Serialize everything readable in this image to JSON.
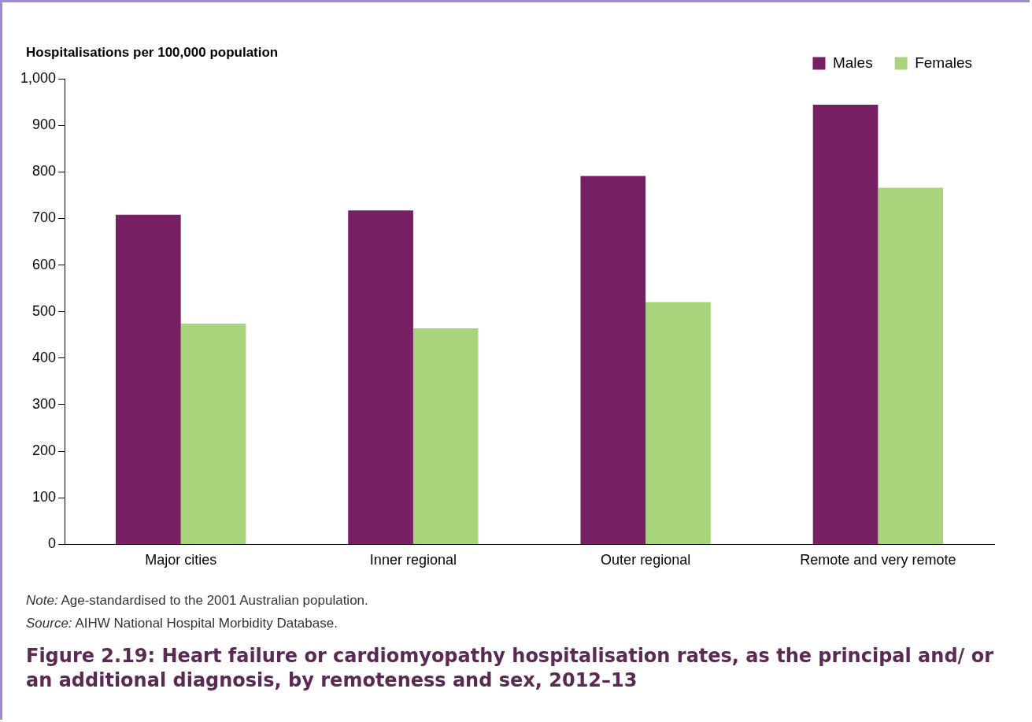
{
  "chart_data": {
    "type": "bar",
    "title": "Figure 2.19: Heart failure or cardiomyopathy hospitalisation rates, as the principal and/ or an additional diagnosis, by remoteness and sex, 2012–13",
    "ylabel": "Hospitalisations per 100,000 population",
    "categories": [
      "Major cities",
      "Inner regional",
      "Outer regional",
      "Remote and very remote"
    ],
    "series": [
      {
        "name": "Males",
        "color": "#761f62",
        "values": [
          708,
          717,
          791,
          944
        ]
      },
      {
        "name": "Females",
        "color": "#a8d47b",
        "values": [
          474,
          464,
          520,
          766
        ]
      }
    ],
    "ylim": [
      0,
      1000
    ],
    "yticks": [
      0,
      100,
      200,
      300,
      400,
      500,
      600,
      700,
      800,
      900,
      {
        "value": 1000,
        "label": "1,000"
      }
    ],
    "grid": false,
    "legend": "top right",
    "annotations": [
      "Note: Age-standardised to the 2001 Australian population.",
      "Source: AIHW National Hospital Morbidity Database."
    ]
  }
}
